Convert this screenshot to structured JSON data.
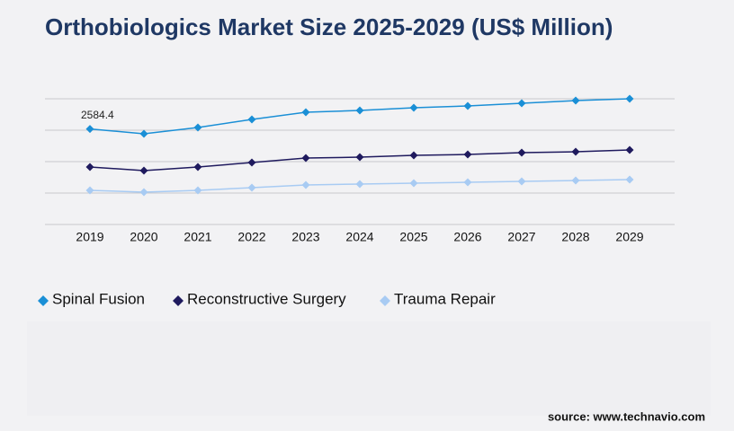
{
  "chart_data": {
    "type": "line",
    "title": "Orthobiologics Market Size 2025-2029 (US$ Million)",
    "source": "source: www.technavio.com",
    "categories": [
      "2019",
      "2020",
      "2021",
      "2022",
      "2023",
      "2024",
      "2025",
      "2026",
      "2027",
      "2028",
      "2029"
    ],
    "series": [
      {
        "name": "Spinal Fusion",
        "color": "#1a8fd6",
        "values": [
          2584.4,
          2453,
          2623,
          2841,
          3036,
          3084,
          3157,
          3206,
          3279,
          3351,
          3400
        ],
        "value_labels": [
          "2584.4",
          null,
          null,
          null,
          null,
          null,
          null,
          null,
          null,
          null,
          null
        ]
      },
      {
        "name": "Reconstructive Surgery",
        "color": "#1f1a5e",
        "values": [
          1554,
          1457,
          1554,
          1676,
          1797,
          1821,
          1870,
          1894,
          1943,
          1967,
          2016
        ]
      },
      {
        "name": "Trauma Repair",
        "color": "#a8cbf3",
        "values": [
          923,
          874,
          923,
          996,
          1069,
          1093,
          1117,
          1141,
          1166,
          1190,
          1214
        ]
      }
    ],
    "ylim": [
      0,
      3400
    ],
    "yticks": [
      0,
      850,
      1700,
      2550,
      3400
    ],
    "grid": true
  }
}
